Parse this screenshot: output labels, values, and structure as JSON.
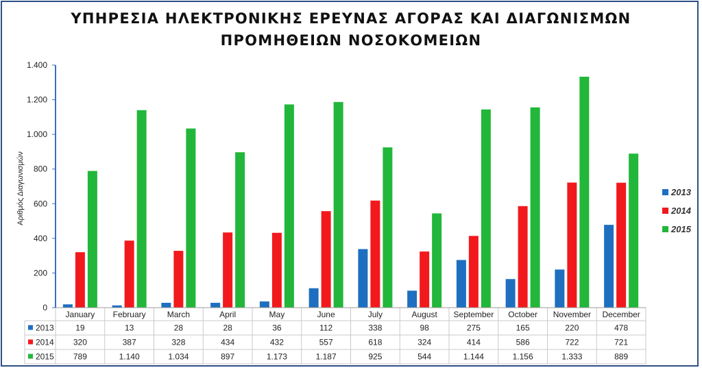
{
  "chart_data": {
    "type": "bar",
    "title_lines": [
      "ΥΠΗΡΕΣΙΑ ΗΛΕΚΤΡΟΝΙΚΗΣ ΕΡΕΥΝΑΣ ΑΓΟΡΑΣ ΚΑΙ ΔΙΑΓΩΝΙΣΜΩΝ",
      "ΠΡΟΜΗΘΕΙΩΝ ΝΟΣΟΚΟΜΕΙΩΝ"
    ],
    "ylabel": "Αριθμός Διαγωνισμών",
    "ylim": [
      0,
      1400
    ],
    "yticks": [
      0,
      200,
      400,
      600,
      800,
      1000,
      1200,
      1400
    ],
    "ytick_labels": [
      "0",
      "200",
      "400",
      "600",
      "800",
      "1.000",
      "1.200",
      "1.400"
    ],
    "categories": [
      "January",
      "February",
      "March",
      "April",
      "May",
      "June",
      "July",
      "August",
      "September",
      "October",
      "November",
      "December"
    ],
    "series": [
      {
        "name": "2013",
        "color": "#1f6fc0",
        "values": [
          19,
          13,
          28,
          28,
          36,
          112,
          338,
          98,
          275,
          165,
          220,
          478
        ],
        "table_values": [
          "19",
          "13",
          "28",
          "28",
          "36",
          "112",
          "338",
          "98",
          "275",
          "165",
          "220",
          "478"
        ]
      },
      {
        "name": "2014",
        "color": "#f2191d",
        "values": [
          320,
          387,
          328,
          434,
          432,
          557,
          618,
          324,
          414,
          586,
          722,
          721
        ],
        "table_values": [
          "320",
          "387",
          "328",
          "434",
          "432",
          "557",
          "618",
          "324",
          "414",
          "586",
          "722",
          "721"
        ]
      },
      {
        "name": "2015",
        "color": "#22b73a",
        "values": [
          789,
          1140,
          1034,
          897,
          1173,
          1187,
          925,
          544,
          1144,
          1156,
          1333,
          889
        ],
        "table_values": [
          "789",
          "1.140",
          "1.034",
          "897",
          "1.173",
          "1.187",
          "925",
          "544",
          "1.144",
          "1.156",
          "1.333",
          "889"
        ]
      }
    ],
    "data_table": true,
    "legend_position": "right",
    "grid": false,
    "axis_color": "#3a6dbf",
    "border_color": "#2e4f86"
  }
}
